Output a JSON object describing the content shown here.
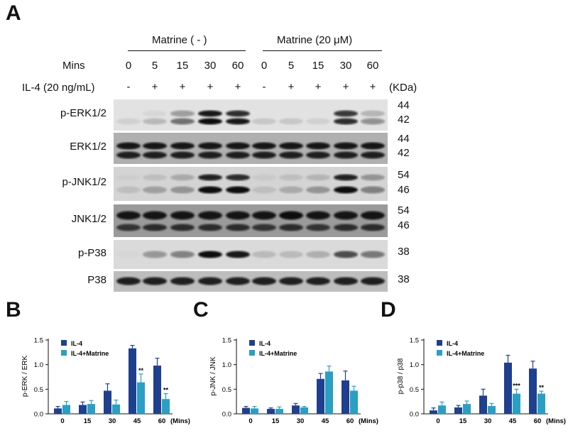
{
  "panels": {
    "a": "A",
    "b": "B",
    "c": "C",
    "d": "D"
  },
  "blot": {
    "group1": "Matrine ( - )",
    "group2": "Matrine (20 μM)",
    "mins_label": "Mins",
    "mins": [
      "0",
      "5",
      "15",
      "30",
      "60",
      "0",
      "5",
      "15",
      "30",
      "60"
    ],
    "il4_label": "IL-4 (20 ng/mL)",
    "il4": [
      "-",
      "+",
      "+",
      "+",
      "+",
      "-",
      "+",
      "+",
      "+",
      "+"
    ],
    "kda_label": "(KDa)",
    "rows": [
      {
        "label": "p-ERK1/2",
        "kda": [
          "44",
          "42"
        ]
      },
      {
        "label": "ERK1/2",
        "kda": [
          "44",
          "42"
        ]
      },
      {
        "label": "p-JNK1/2",
        "kda": [
          "54",
          "46"
        ]
      },
      {
        "label": "JNK1/2",
        "kda": [
          "54",
          "46"
        ]
      },
      {
        "label": "p-P38",
        "kda": [
          "38"
        ]
      },
      {
        "label": "P38",
        "kda": [
          "38"
        ]
      }
    ]
  },
  "chart_data": [
    {
      "type": "bar",
      "ylabel": "p-ERK / ERK",
      "xunit": "(Mins)",
      "categories": [
        "0",
        "15",
        "30",
        "45",
        "60"
      ],
      "ylim": [
        0,
        1.5
      ],
      "yticks": [
        "0.0",
        "0.5",
        "1.0",
        "1.5"
      ],
      "series": [
        {
          "name": "IL-4",
          "values": [
            0.11,
            0.18,
            0.47,
            1.33,
            0.98
          ],
          "err": [
            0.04,
            0.06,
            0.14,
            0.06,
            0.15
          ]
        },
        {
          "name": "IL-4+Matrine",
          "values": [
            0.18,
            0.2,
            0.19,
            0.64,
            0.3
          ],
          "err": [
            0.07,
            0.07,
            0.09,
            0.17,
            0.11
          ]
        }
      ],
      "annotations": [
        {
          "index": 3,
          "text": "**"
        },
        {
          "index": 4,
          "text": "**"
        }
      ]
    },
    {
      "type": "bar",
      "ylabel": "p-JNK / JNK",
      "xunit": "(Mins)",
      "categories": [
        "0",
        "15",
        "30",
        "45",
        "60"
      ],
      "ylim": [
        0,
        1.5
      ],
      "yticks": [
        "0.0",
        "0.5",
        "1.0",
        "1.5"
      ],
      "series": [
        {
          "name": "IL-4",
          "values": [
            0.12,
            0.1,
            0.17,
            0.71,
            0.68
          ],
          "err": [
            0.03,
            0.02,
            0.04,
            0.11,
            0.19
          ]
        },
        {
          "name": "IL-4+Matrine",
          "values": [
            0.11,
            0.1,
            0.13,
            0.86,
            0.47
          ],
          "err": [
            0.04,
            0.04,
            0.02,
            0.11,
            0.09
          ]
        }
      ],
      "annotations": []
    },
    {
      "type": "bar",
      "ylabel": "p-p38 / p38",
      "xunit": "(Mins)",
      "categories": [
        "0",
        "15",
        "30",
        "45",
        "60"
      ],
      "ylim": [
        0,
        1.5
      ],
      "yticks": [
        "0.0",
        "0.5",
        "1.0",
        "1.5"
      ],
      "series": [
        {
          "name": "IL-4",
          "values": [
            0.07,
            0.13,
            0.37,
            1.04,
            0.92
          ],
          "err": [
            0.05,
            0.04,
            0.13,
            0.15,
            0.15
          ]
        },
        {
          "name": "IL-4+Matrine",
          "values": [
            0.17,
            0.2,
            0.16,
            0.41,
            0.41
          ],
          "err": [
            0.07,
            0.06,
            0.05,
            0.09,
            0.05
          ]
        }
      ],
      "annotations": [
        {
          "index": 3,
          "text": "***"
        },
        {
          "index": 4,
          "text": "**"
        }
      ]
    }
  ],
  "colors": {
    "il4": "#1f3f8f",
    "il4_matrine": "#2a9fc4"
  }
}
